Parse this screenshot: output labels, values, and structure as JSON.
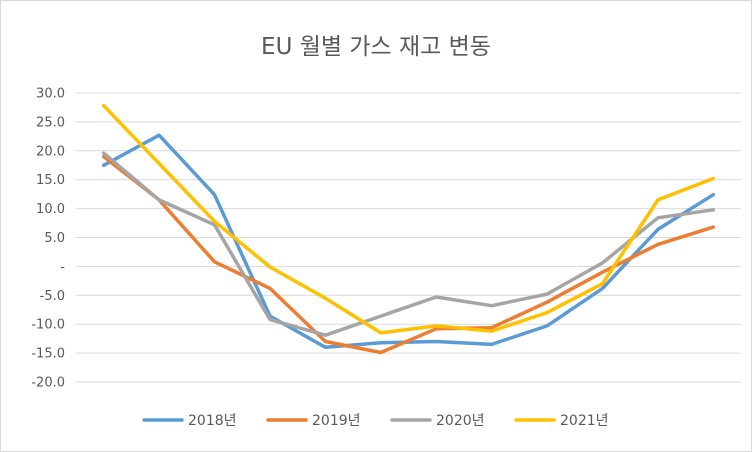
{
  "chart_data": {
    "type": "line",
    "title": "EU 월별 가스 재고 변동",
    "xlabel": "",
    "ylabel": "",
    "ylim": [
      -20,
      30
    ],
    "yticks": [
      30,
      25,
      20,
      15,
      10,
      5,
      0,
      -5,
      -10,
      -15,
      -20
    ],
    "yticklabels": [
      "30.0",
      "25.0",
      "20.0",
      "15.0",
      "10.0",
      "5.0",
      "-",
      "-5.0",
      "-10.0",
      "-15.0",
      "-20.0"
    ],
    "x": [
      1,
      2,
      3,
      4,
      5,
      6,
      7,
      8,
      9,
      10,
      11,
      12
    ],
    "grid": "horizontal",
    "legend": "bottom",
    "series": [
      {
        "name": "2018년",
        "color": "#5B9BD5",
        "values": [
          17.5,
          22.7,
          12.4,
          -8.6,
          -14.0,
          -13.2,
          -13.0,
          -13.5,
          -10.3,
          -3.8,
          6.4,
          12.4
        ]
      },
      {
        "name": "2019년",
        "color": "#ED7D31",
        "values": [
          19.0,
          11.5,
          0.8,
          -3.8,
          -13.0,
          -14.9,
          -10.8,
          -10.6,
          -6.2,
          -1.0,
          3.8,
          6.8
        ]
      },
      {
        "name": "2020년",
        "color": "#A5A5A5",
        "values": [
          19.6,
          11.5,
          7.2,
          -9.2,
          -11.9,
          -8.6,
          -5.3,
          -6.8,
          -4.8,
          0.6,
          8.4,
          9.8
        ]
      },
      {
        "name": "2021년",
        "color": "#FFC000",
        "values": [
          27.8,
          17.8,
          7.8,
          -0.1,
          -5.5,
          -11.5,
          -10.3,
          -11.2,
          -8.0,
          -3.0,
          11.5,
          15.2
        ]
      }
    ]
  }
}
